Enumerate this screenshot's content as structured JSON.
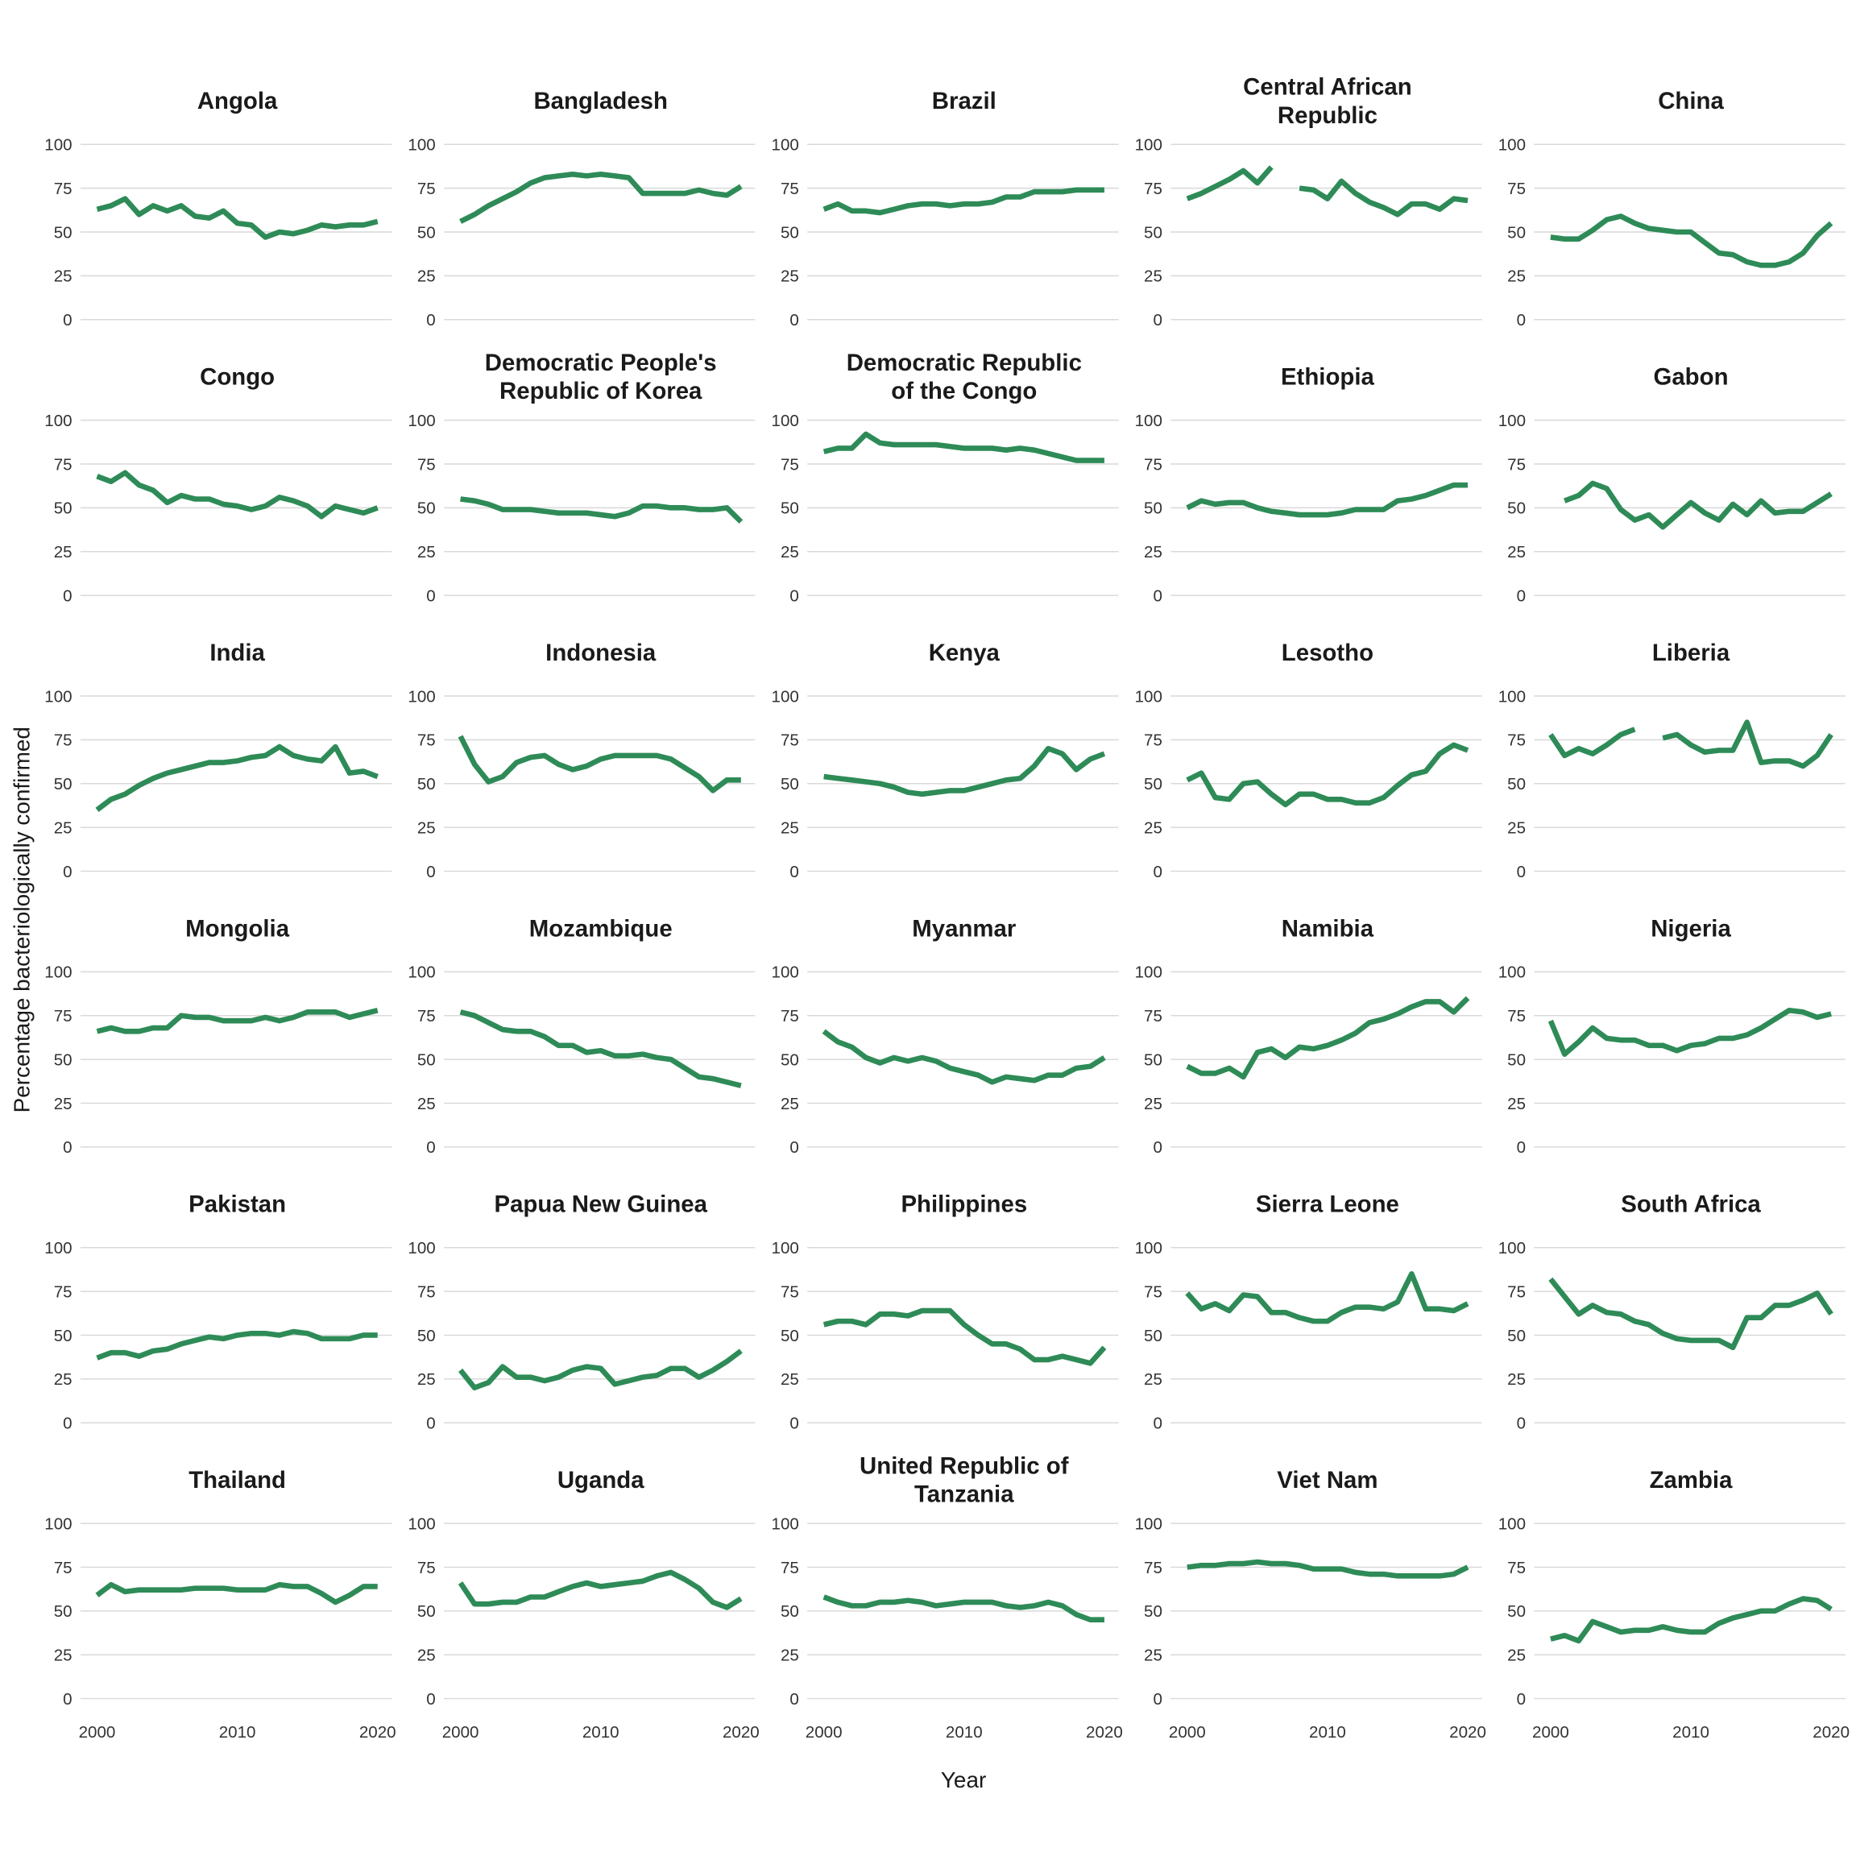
{
  "chart_data": {
    "type": "line",
    "layout": "small-multiples 6x5 facet grid",
    "xlabel": "Year",
    "ylabel": "Percentage bacteriologically confirmed",
    "xlim": [
      2000,
      2020
    ],
    "ylim": [
      0,
      100
    ],
    "x_ticks": [
      2000,
      2010,
      2020
    ],
    "y_ticks": [
      0,
      25,
      50,
      75,
      100
    ],
    "grid": "horizontal major",
    "line_color": "#2e8b57",
    "x": [
      2000,
      2001,
      2002,
      2003,
      2004,
      2005,
      2006,
      2007,
      2008,
      2009,
      2010,
      2011,
      2012,
      2013,
      2014,
      2015,
      2016,
      2017,
      2018,
      2019,
      2020
    ],
    "panels": [
      {
        "title": "Angola",
        "title_lines": [
          "Angola"
        ],
        "values": [
          63,
          65,
          69,
          60,
          65,
          62,
          65,
          59,
          58,
          62,
          55,
          54,
          47,
          50,
          49,
          51,
          54,
          53,
          54,
          54,
          56
        ]
      },
      {
        "title": "Bangladesh",
        "title_lines": [
          "Bangladesh"
        ],
        "values": [
          56,
          60,
          65,
          69,
          73,
          78,
          81,
          82,
          83,
          82,
          83,
          82,
          81,
          72,
          72,
          72,
          72,
          74,
          72,
          71,
          76
        ]
      },
      {
        "title": "Brazil",
        "title_lines": [
          "Brazil"
        ],
        "values": [
          63,
          66,
          62,
          62,
          61,
          63,
          65,
          66,
          66,
          65,
          66,
          66,
          67,
          70,
          70,
          73,
          73,
          73,
          74,
          74,
          74
        ]
      },
      {
        "title": "Central African Republic",
        "title_lines": [
          "Central African",
          "Republic"
        ],
        "values": [
          69,
          72,
          76,
          80,
          85,
          78,
          87,
          null,
          75,
          74,
          69,
          79,
          72,
          67,
          64,
          60,
          66,
          66,
          63,
          69,
          68
        ]
      },
      {
        "title": "China",
        "title_lines": [
          "China"
        ],
        "values": [
          47,
          46,
          46,
          51,
          57,
          59,
          55,
          52,
          51,
          50,
          50,
          44,
          38,
          37,
          33,
          31,
          31,
          33,
          38,
          48,
          55
        ]
      },
      {
        "title": "Congo",
        "title_lines": [
          "Congo"
        ],
        "values": [
          68,
          65,
          70,
          63,
          60,
          53,
          57,
          55,
          55,
          52,
          51,
          49,
          51,
          56,
          54,
          51,
          45,
          51,
          49,
          47,
          50
        ]
      },
      {
        "title": "Democratic People's Republic of Korea",
        "title_lines": [
          "Democratic People's",
          "Republic of Korea"
        ],
        "values": [
          55,
          54,
          52,
          49,
          49,
          49,
          48,
          47,
          47,
          47,
          46,
          45,
          47,
          51,
          51,
          50,
          50,
          49,
          49,
          50,
          42
        ]
      },
      {
        "title": "Democratic Republic of the Congo",
        "title_lines": [
          "Democratic Republic",
          "of the Congo"
        ],
        "values": [
          82,
          84,
          84,
          92,
          87,
          86,
          86,
          86,
          86,
          85,
          84,
          84,
          84,
          83,
          84,
          83,
          81,
          79,
          77,
          77,
          77
        ]
      },
      {
        "title": "Ethiopia",
        "title_lines": [
          "Ethiopia"
        ],
        "values": [
          50,
          54,
          52,
          53,
          53,
          50,
          48,
          47,
          46,
          46,
          46,
          47,
          49,
          49,
          49,
          54,
          55,
          57,
          60,
          63,
          63
        ]
      },
      {
        "title": "Gabon",
        "title_lines": [
          "Gabon"
        ],
        "values": [
          null,
          54,
          57,
          64,
          61,
          49,
          43,
          46,
          39,
          46,
          53,
          47,
          43,
          52,
          46,
          54,
          47,
          48,
          48,
          53,
          58
        ]
      },
      {
        "title": "India",
        "title_lines": [
          "India"
        ],
        "values": [
          35,
          41,
          44,
          49,
          53,
          56,
          58,
          60,
          62,
          62,
          63,
          65,
          66,
          71,
          66,
          64,
          63,
          71,
          56,
          57,
          54
        ]
      },
      {
        "title": "Indonesia",
        "title_lines": [
          "Indonesia"
        ],
        "values": [
          77,
          61,
          51,
          54,
          62,
          65,
          66,
          61,
          58,
          60,
          64,
          66,
          66,
          66,
          66,
          64,
          59,
          54,
          46,
          52,
          52
        ]
      },
      {
        "title": "Kenya",
        "title_lines": [
          "Kenya"
        ],
        "values": [
          54,
          53,
          52,
          51,
          50,
          48,
          45,
          44,
          45,
          46,
          46,
          48,
          50,
          52,
          53,
          60,
          70,
          67,
          58,
          64,
          67
        ]
      },
      {
        "title": "Lesotho",
        "title_lines": [
          "Lesotho"
        ],
        "values": [
          52,
          56,
          42,
          41,
          50,
          51,
          44,
          38,
          44,
          44,
          41,
          41,
          39,
          39,
          42,
          49,
          55,
          57,
          67,
          72,
          69
        ]
      },
      {
        "title": "Liberia",
        "title_lines": [
          "Liberia"
        ],
        "values": [
          78,
          66,
          70,
          67,
          72,
          78,
          81,
          null,
          76,
          78,
          72,
          68,
          69,
          69,
          85,
          62,
          63,
          63,
          60,
          66,
          78
        ]
      },
      {
        "title": "Mongolia",
        "title_lines": [
          "Mongolia"
        ],
        "values": [
          66,
          68,
          66,
          66,
          68,
          68,
          75,
          74,
          74,
          72,
          72,
          72,
          74,
          72,
          74,
          77,
          77,
          77,
          74,
          76,
          78
        ]
      },
      {
        "title": "Mozambique",
        "title_lines": [
          "Mozambique"
        ],
        "values": [
          77,
          75,
          71,
          67,
          66,
          66,
          63,
          58,
          58,
          54,
          55,
          52,
          52,
          53,
          51,
          50,
          45,
          40,
          39,
          37,
          35
        ]
      },
      {
        "title": "Myanmar",
        "title_lines": [
          "Myanmar"
        ],
        "values": [
          66,
          60,
          57,
          51,
          48,
          51,
          49,
          51,
          49,
          45,
          43,
          41,
          37,
          40,
          39,
          38,
          41,
          41,
          45,
          46,
          51
        ]
      },
      {
        "title": "Namibia",
        "title_lines": [
          "Namibia"
        ],
        "values": [
          46,
          42,
          42,
          45,
          40,
          54,
          56,
          51,
          57,
          56,
          58,
          61,
          65,
          71,
          73,
          76,
          80,
          83,
          83,
          77,
          85
        ]
      },
      {
        "title": "Nigeria",
        "title_lines": [
          "Nigeria"
        ],
        "values": [
          72,
          53,
          60,
          68,
          62,
          61,
          61,
          58,
          58,
          55,
          58,
          59,
          62,
          62,
          64,
          68,
          73,
          78,
          77,
          74,
          76
        ]
      },
      {
        "title": "Pakistan",
        "title_lines": [
          "Pakistan"
        ],
        "values": [
          37,
          40,
          40,
          38,
          41,
          42,
          45,
          47,
          49,
          48,
          50,
          51,
          51,
          50,
          52,
          51,
          48,
          48,
          48,
          50,
          50
        ]
      },
      {
        "title": "Papua New Guinea",
        "title_lines": [
          "Papua New Guinea"
        ],
        "values": [
          30,
          20,
          23,
          32,
          26,
          26,
          24,
          26,
          30,
          32,
          31,
          22,
          24,
          26,
          27,
          31,
          31,
          26,
          30,
          35,
          41
        ]
      },
      {
        "title": "Philippines",
        "title_lines": [
          "Philippines"
        ],
        "values": [
          56,
          58,
          58,
          56,
          62,
          62,
          61,
          64,
          64,
          64,
          56,
          50,
          45,
          45,
          42,
          36,
          36,
          38,
          36,
          34,
          43
        ]
      },
      {
        "title": "Sierra Leone",
        "title_lines": [
          "Sierra Leone"
        ],
        "values": [
          74,
          65,
          68,
          64,
          73,
          72,
          63,
          63,
          60,
          58,
          58,
          63,
          66,
          66,
          65,
          69,
          85,
          65,
          65,
          64,
          68
        ]
      },
      {
        "title": "South Africa",
        "title_lines": [
          "South Africa"
        ],
        "values": [
          82,
          72,
          62,
          67,
          63,
          62,
          58,
          56,
          51,
          48,
          47,
          47,
          47,
          43,
          60,
          60,
          67,
          67,
          70,
          74,
          62
        ]
      },
      {
        "title": "Thailand",
        "title_lines": [
          "Thailand"
        ],
        "values": [
          59,
          65,
          61,
          62,
          62,
          62,
          62,
          63,
          63,
          63,
          62,
          62,
          62,
          65,
          64,
          64,
          60,
          55,
          59,
          64,
          64
        ]
      },
      {
        "title": "Uganda",
        "title_lines": [
          "Uganda"
        ],
        "values": [
          66,
          54,
          54,
          55,
          55,
          58,
          58,
          61,
          64,
          66,
          64,
          65,
          66,
          67,
          70,
          72,
          68,
          63,
          55,
          52,
          57
        ]
      },
      {
        "title": "United Republic of Tanzania",
        "title_lines": [
          "United Republic of",
          "Tanzania"
        ],
        "values": [
          58,
          55,
          53,
          53,
          55,
          55,
          56,
          55,
          53,
          54,
          55,
          55,
          55,
          53,
          52,
          53,
          55,
          53,
          48,
          45,
          45
        ]
      },
      {
        "title": "Viet Nam",
        "title_lines": [
          "Viet Nam"
        ],
        "values": [
          75,
          76,
          76,
          77,
          77,
          78,
          77,
          77,
          76,
          74,
          74,
          74,
          72,
          71,
          71,
          70,
          70,
          70,
          70,
          71,
          75
        ]
      },
      {
        "title": "Zambia",
        "title_lines": [
          "Zambia"
        ],
        "values": [
          34,
          36,
          33,
          44,
          41,
          38,
          39,
          39,
          41,
          39,
          38,
          38,
          43,
          46,
          48,
          50,
          50,
          54,
          57,
          56,
          51
        ]
      }
    ]
  }
}
